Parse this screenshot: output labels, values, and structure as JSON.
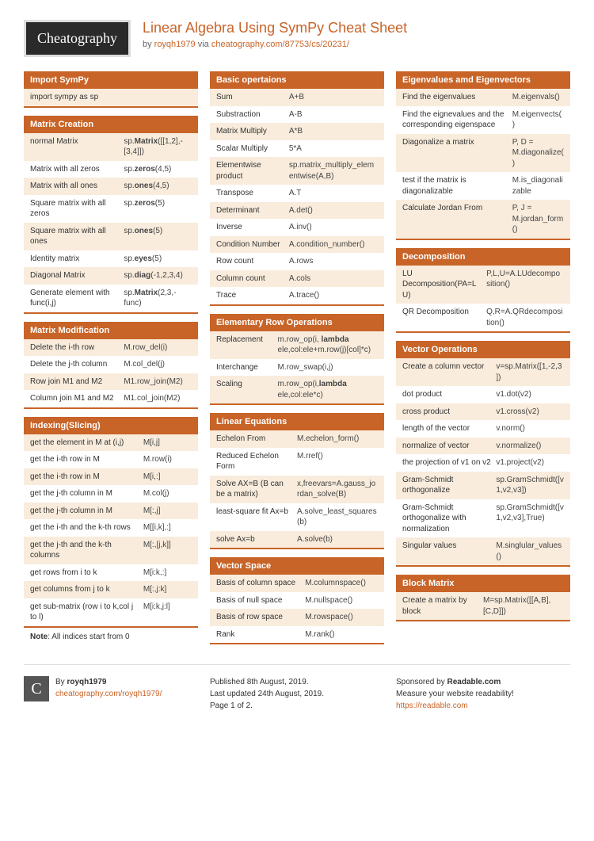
{
  "header": {
    "logo": "Cheatography",
    "title": "Linear Algebra Using SymPy Cheat Sheet",
    "by_prefix": "by ",
    "author": "royqh1979",
    "via_prefix": " via ",
    "url": "cheatography.com/87753/cs/20231/"
  },
  "colors": {
    "accent": "#c86428",
    "row_alt": "#f9ecdc"
  },
  "columns": [
    [
      {
        "title": "Import SymPy",
        "rows": [
          {
            "c1": "import sympy as sp"
          }
        ]
      },
      {
        "title": "Matrix Creation",
        "col2_flex": "42%",
        "rows": [
          {
            "c1": "normal Matrix",
            "c2_html": "sp.<strong>Matrix</strong>([[1,2],-[3,4]])"
          },
          {
            "c1": "Matrix with all zeros",
            "c2_html": "sp.<strong>zeros</strong>(4,5)"
          },
          {
            "c1": "Matrix with all ones",
            "c2_html": "sp.<strong>ones</strong>(4,5)"
          },
          {
            "c1": "Square matrix with all zeros",
            "c2_html": "sp.<strong>zeros</strong>(5)"
          },
          {
            "c1": "Square matrix with all ones",
            "c2_html": "sp.<strong>ones</strong>(5)"
          },
          {
            "c1": "Identity matrix",
            "c2_html": "sp.<strong>eyes</strong>(5)"
          },
          {
            "c1": "Diagonal Matrix",
            "c2_html": "sp.<strong>diag</strong>(-1,2,3,4)"
          },
          {
            "c1": "Generate element with func(i,j)",
            "c2_html": "sp.<strong>Matrix</strong>(2,3,-func)"
          }
        ]
      },
      {
        "title": "Matrix Modification",
        "col2_flex": "42%",
        "rows": [
          {
            "c1": "Delete the i-th row",
            "c2": "M.row_del(i)"
          },
          {
            "c1": "Delete the j-th column",
            "c2": "M.col_del(j)"
          },
          {
            "c1": "Row join M1 and M2",
            "c2": "M1.row_join(M2)"
          },
          {
            "c1": "Column join M1 and M2",
            "c2": "M1.col_join(M2)"
          }
        ]
      },
      {
        "title": "Indexing(Slicing)",
        "col2_flex": "30%",
        "rows": [
          {
            "c1": "get the element in M at (i,j)",
            "c2": "M[i,j]"
          },
          {
            "c1": "get the i-th row in M",
            "c2": "M.row(i)"
          },
          {
            "c1": "get the i-th row in M",
            "c2": "M[i,:]"
          },
          {
            "c1": "get the j-th column in M",
            "c2": "M.col(j)"
          },
          {
            "c1": "get the j-th column in M",
            "c2": "M[:,j]"
          },
          {
            "c1": "get the i-th and the k-th rows",
            "c2": "M[[i,k],:]"
          },
          {
            "c1": "get the j-th and the k-th columns",
            "c2": "M[:,[j,k]]"
          },
          {
            "c1": "get rows from i to k",
            "c2": "M[i:k,:]"
          },
          {
            "c1": "get columns from j to k",
            "c2": "M[:,j:k]"
          },
          {
            "c1": "get sub-matrix (row i to k,col j to l)",
            "c2": "M[i:k,j:l]"
          }
        ],
        "note_html": "<b>Note</b>: All indices start from 0"
      }
    ],
    [
      {
        "title": "Basic opertaions",
        "col2_flex": "55%",
        "rows": [
          {
            "c1": "Sum",
            "c2": "A+B"
          },
          {
            "c1": "Substraction",
            "c2": "A-B"
          },
          {
            "c1": "Matrix Multiply",
            "c2": "A*B"
          },
          {
            "c1": "Scalar Multiply",
            "c2": "5*A"
          },
          {
            "c1": "Elementwise product",
            "c2": "sp.matrix_multiply_elementwise(A,B)"
          },
          {
            "c1": "Transpose",
            "c2": "A.T"
          },
          {
            "c1": "Determinant",
            "c2": "A.det()"
          },
          {
            "c1": "Inverse",
            "c2": "A.inv()"
          },
          {
            "c1": "Condition Number",
            "c2": "A.condition_number()"
          },
          {
            "c1": "Row count",
            "c2": "A.rows"
          },
          {
            "c1": "Column count",
            "c2": "A.cols"
          },
          {
            "c1": "Trace",
            "c2": "A.trace()"
          }
        ]
      },
      {
        "title": "Elementary Row Operations",
        "col2_flex": "62%",
        "rows": [
          {
            "c1": "Replacement",
            "c2_html": "m.row_op(i, <strong>lambda</strong> ele,col:ele+m.row(j)[col]*c)"
          },
          {
            "c1": "Interchange",
            "c2": "M.row_swap(i,j)"
          },
          {
            "c1": "Scaling",
            "c2_html": "m.row_op(i,<strong>lambda</strong> ele,col:ele*c)"
          }
        ]
      },
      {
        "title": "Linear Equations",
        "col2_flex": "50%",
        "rows": [
          {
            "c1": "Echelon From",
            "c2": "M.echelon_form()"
          },
          {
            "c1": "Reduced Echelon Form",
            "c2": "M.rref()"
          },
          {
            "c1": "Solve AX=B (B can be a matrix)",
            "c2": "x,freevars=A.gauss_jordan_solve(B)"
          },
          {
            "c1": "least-square fit Ax=b",
            "c2": "A.solve_least_squares(b)"
          },
          {
            "c1": "solve Ax=b",
            "c2": "A.solve(b)"
          }
        ]
      },
      {
        "title": "Vector Space",
        "col2_flex": "45%",
        "rows": [
          {
            "c1": "Basis of column space",
            "c2": "M.columnspace()"
          },
          {
            "c1": "Basis of null space",
            "c2": "M.nullspace()"
          },
          {
            "c1": "Basis of row space",
            "c2": "M.rowspace()"
          },
          {
            "c1": "Rank",
            "c2": "M.rank()"
          }
        ]
      }
    ],
    [
      {
        "title": "Eigenvalues amd Eigenvectors",
        "col2_flex": "32%",
        "rows": [
          {
            "c1": "Find the eigenvalues",
            "c2": "M.eigenvals()"
          },
          {
            "c1": "Find the eignevalues and the corresponding eigenspace",
            "c2": "M.eigenvects()"
          },
          {
            "c1": "Diagonalize a matrix",
            "c2": "P, D = M.diagonalize()"
          },
          {
            "c1": "test if the matrix is diagonalizable",
            "c2": "M.is_diagonalizable"
          },
          {
            "c1": "Calculate Jordan From",
            "c2": "P, J = M.jordan_form()"
          }
        ]
      },
      {
        "title": "Decomposition",
        "col2_flex": "48%",
        "rows": [
          {
            "c1": "LU Decomposition(PA=LU)",
            "c2": "P,L,U=A.LUdecomposition()"
          },
          {
            "c1": "QR Decomposition",
            "c2": "Q,R=A.QRdecomposition()"
          }
        ]
      },
      {
        "title": "Vector Operations",
        "col2_flex": "42%",
        "rows": [
          {
            "c1": "Create a column vector",
            "c2": "v=sp.Matrix([1,-2,3])"
          },
          {
            "c1": "dot product",
            "c2": "v1.dot(v2)"
          },
          {
            "c1": "cross product",
            "c2": "v1.cross(v2)"
          },
          {
            "c1": "length of the vector",
            "c2": "v.norm()"
          },
          {
            "c1": "normalize of vector",
            "c2": "v.normalize()"
          },
          {
            "c1": "the projection of v1 on v2",
            "c2": "v1.project(v2)"
          },
          {
            "c1": "Gram-Schmidt orthogonalize",
            "c2": "sp.GramSchmidt([v1,v2,v3])"
          },
          {
            "c1": "Gram-Schmidt orthogonalize with normalization",
            "c2": "sp.GramSchmidt([v1,v2,v3],True)"
          },
          {
            "c1": "Singular values",
            "c2": "M.singlular_values()"
          }
        ]
      },
      {
        "title": "Block Matrix",
        "col2_flex": "50%",
        "rows": [
          {
            "c1": "Create a matrix by block",
            "c2": "M=sp.Matrix([[A,B],[C,D]])"
          }
        ]
      }
    ]
  ],
  "footer": {
    "col1_by": "By ",
    "col1_author": "royqh1979",
    "col1_link": "cheatography.com/royqh1979/",
    "col2_l1": "Published 8th August, 2019.",
    "col2_l2": "Last updated 24th August, 2019.",
    "col2_l3": "Page 1 of 2.",
    "col3_prefix": "Sponsored by ",
    "col3_sponsor": "Readable.com",
    "col3_l2": "Measure your website readability!",
    "col3_link": "https://readable.com"
  }
}
